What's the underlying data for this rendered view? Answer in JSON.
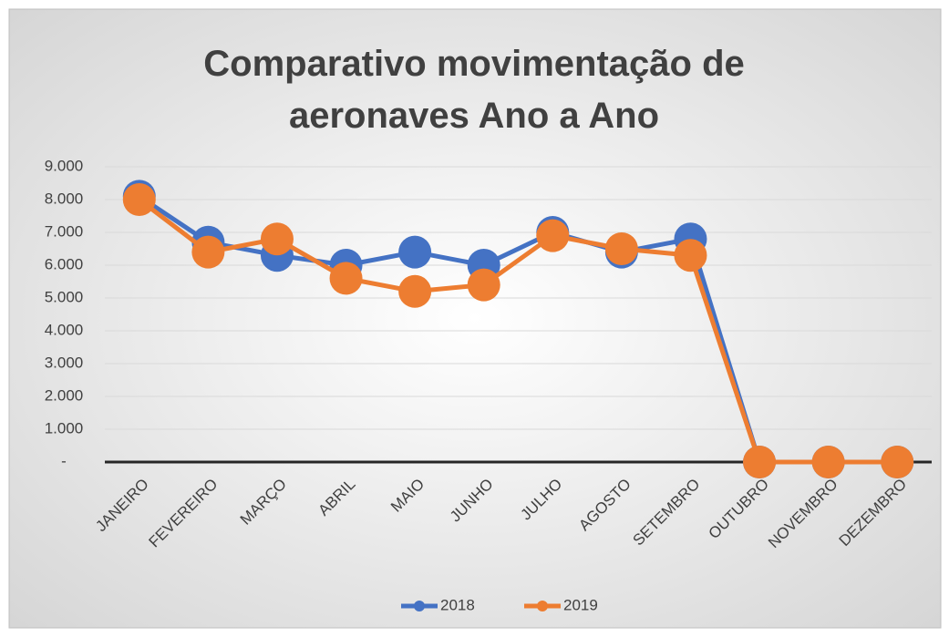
{
  "chart_data": {
    "type": "line",
    "title": "Comparativo movimentação de aeronaves Ano a Ano",
    "categories": [
      "JANEIRO",
      "FEVEREIRO",
      "MARÇO",
      "ABRIL",
      "MAIO",
      "JUNHO",
      "JULHO",
      "AGOSTO",
      "SETEMBRO",
      "OUTUBRO",
      "NOVEMBRO",
      "DEZEMBRO"
    ],
    "series": [
      {
        "name": "2018",
        "color": "#4472c4",
        "values": [
          8100,
          6700,
          6300,
          6000,
          6400,
          6000,
          7000,
          6400,
          6800,
          0,
          0,
          0
        ]
      },
      {
        "name": "2019",
        "color": "#ed7d31",
        "values": [
          8000,
          6400,
          6800,
          5600,
          5200,
          5400,
          6900,
          6500,
          6300,
          0,
          0,
          0
        ]
      }
    ],
    "ylim": [
      0,
      9000
    ],
    "yticks": [
      {
        "value": 0,
        "label": "-"
      },
      {
        "value": 1000,
        "label": "1.000"
      },
      {
        "value": 2000,
        "label": "2.000"
      },
      {
        "value": 3000,
        "label": "3.000"
      },
      {
        "value": 4000,
        "label": "4.000"
      },
      {
        "value": 5000,
        "label": "5.000"
      },
      {
        "value": 6000,
        "label": "6.000"
      },
      {
        "value": 7000,
        "label": "7.000"
      },
      {
        "value": 8000,
        "label": "8.000"
      },
      {
        "value": 9000,
        "label": "9.000"
      }
    ],
    "grid": true,
    "legend": "bottom"
  }
}
